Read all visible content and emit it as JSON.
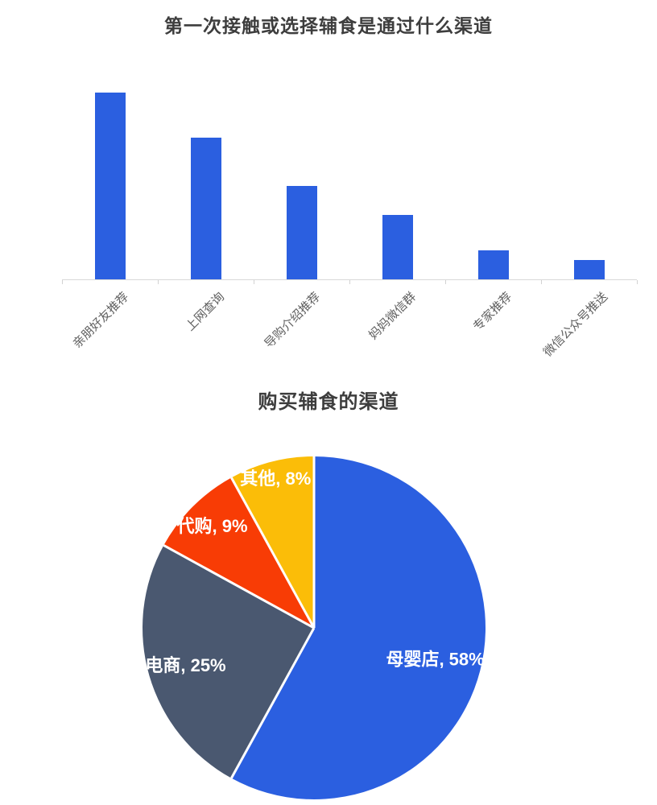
{
  "page": {
    "background": "#ffffff",
    "title_color": "#3d3d3d"
  },
  "chart_data": [
    {
      "type": "bar",
      "title": "第一次接触或选择辅食是通过什么渠道",
      "categories": [
        "亲朋好友推荐",
        "上网查询",
        "导购介绍推荐",
        "妈妈微信群",
        "专家推荐",
        "微信公众号推送"
      ],
      "values": [
        58,
        44,
        29,
        20,
        9,
        6
      ],
      "unit": "%",
      "xlabel": "",
      "ylabel": "",
      "ylim": [
        0,
        60
      ],
      "grid": false,
      "legend": "none",
      "y_axis_visible": false,
      "bar_color": "#2b5fe0",
      "axis_color": "#d9d9d9",
      "category_label_color": "#606060"
    },
    {
      "type": "pie",
      "title": "购买辅食的渠道",
      "slices": [
        {
          "label": "母婴店",
          "value": 58,
          "color": "#2b5fe0"
        },
        {
          "label": "电商",
          "value": 25,
          "color": "#4a5870"
        },
        {
          "label": "代购",
          "value": 9,
          "color": "#f83c05"
        },
        {
          "label": "其他",
          "value": 8,
          "color": "#fbbd08"
        }
      ],
      "label_format": "label, value%",
      "label_text_color": "#ffffff",
      "separator_color": "#ffffff",
      "start_angle_deg": 0,
      "direction": "clockwise",
      "legend": "none"
    }
  ]
}
